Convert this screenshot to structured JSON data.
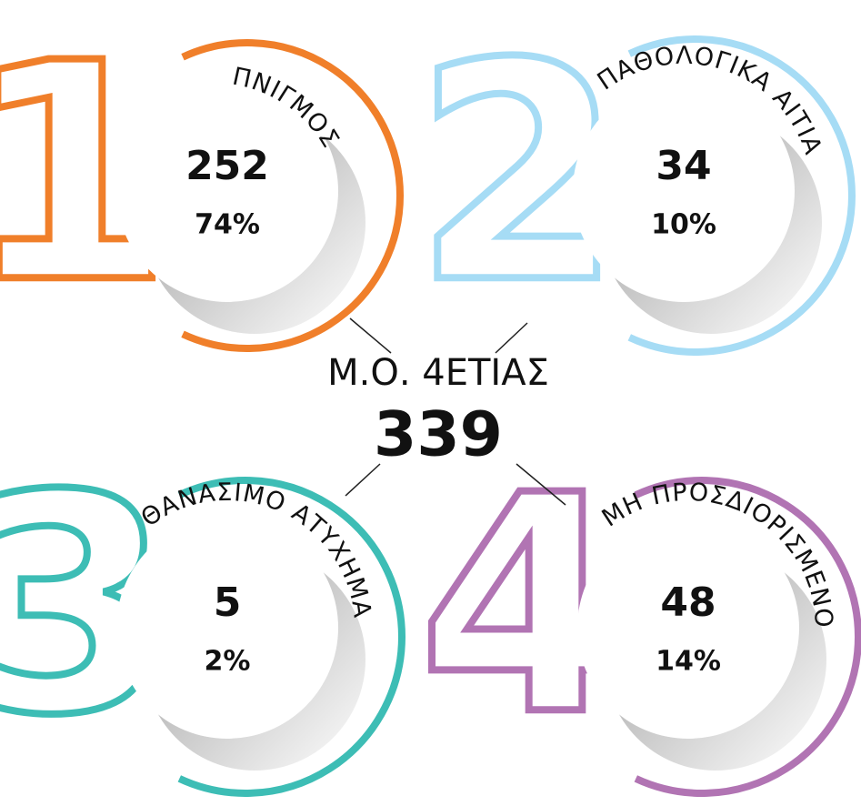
{
  "center": {
    "label": "Μ.Ο. 4ΕΤΙΑΣ",
    "value": "339"
  },
  "items": [
    {
      "number": "1",
      "label": "ΠΝΙΓΜΟΣ",
      "count": "252",
      "percent": "74%",
      "color": "#f07f2a"
    },
    {
      "number": "2",
      "label": "ΠΑΘΟΛΟΓΙΚΑ ΑΙΤΙΑ",
      "count": "34",
      "percent": "10%",
      "color": "#a6dcf5"
    },
    {
      "number": "3",
      "label": "ΘΑΝΑΣΙΜΟ ΑΤΥΧΗΜΑ",
      "count": "5",
      "percent": "2%",
      "color": "#3dbdb5"
    },
    {
      "number": "4",
      "label": "ΜΗ ΠΡΟΣΔΙΟΡΙΣΜΕΝΟ",
      "count": "48",
      "percent": "14%",
      "color": "#b174b3"
    }
  ]
}
